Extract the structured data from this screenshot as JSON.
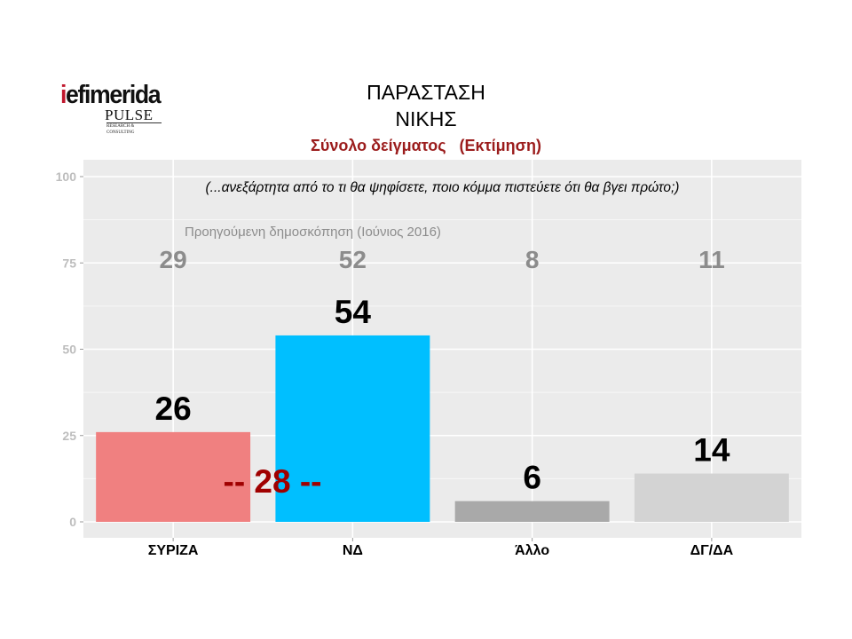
{
  "brand": {
    "name_prefix": "i",
    "name_rest": "efimerida",
    "partner": "PULSE",
    "partner_tagline": "RESEARCH & CONSULTING"
  },
  "header": {
    "title_line1": "ΠΑΡΑΣΤΑΣΗ",
    "title_line2": "ΝΙΚΗΣ",
    "subtitle": "Σύνολο δείγματος   (Εκτίμηση)"
  },
  "chart_data": {
    "type": "bar",
    "question": "(...ανεξάρτητα από το τι θα ψηφίσετε, ποιο κόμμα πιστεύετε ότι θα βγει πρώτο;)",
    "categories": [
      "ΣΥΡΙΖΑ",
      "ΝΔ",
      "Άλλο",
      "ΔΓ/ΔΑ"
    ],
    "values": [
      26,
      54,
      6,
      14
    ],
    "bar_colors": [
      "#f08080",
      "#00bfff",
      "#a9a9a9",
      "#d3d3d3"
    ],
    "previous_label": "Προηγούμενη δημοσκόπηση (Ιούνιος 2016)",
    "previous_values": [
      29,
      52,
      8,
      11
    ],
    "difference_label": "-- 28 --",
    "ylim": [
      0,
      100
    ],
    "yticks": [
      0,
      25,
      50,
      75,
      100
    ],
    "grid": true,
    "panel_color": "#ebebeb"
  }
}
